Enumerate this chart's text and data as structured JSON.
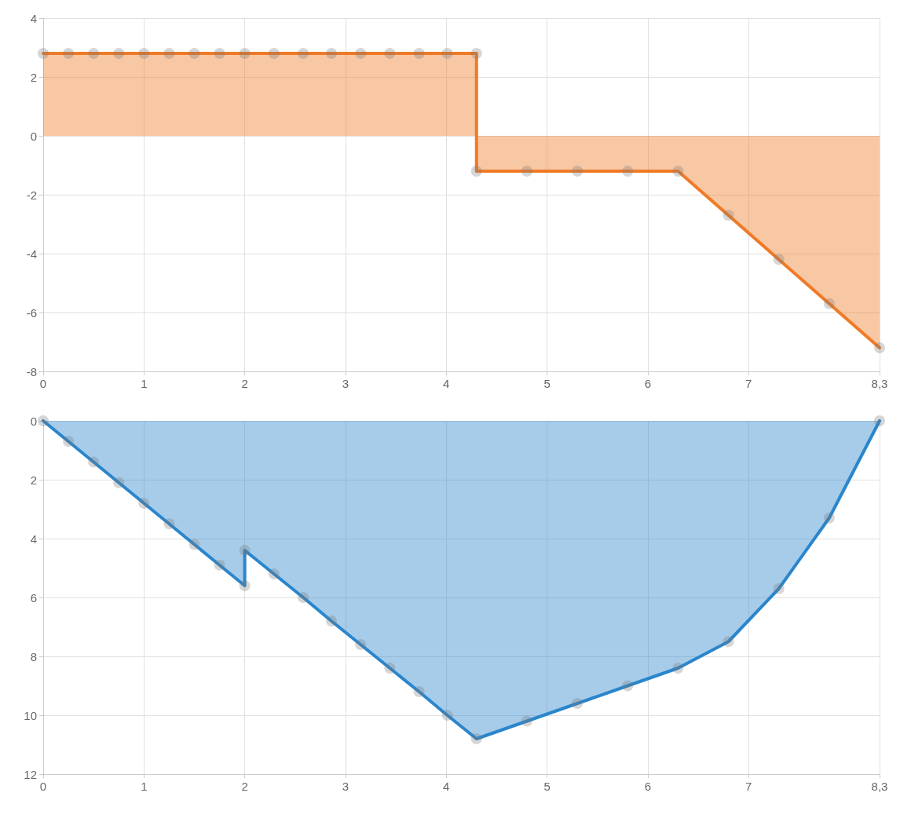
{
  "chart_data": [
    {
      "type": "area",
      "x": [
        0,
        0.25,
        0.5,
        0.75,
        1,
        1.25,
        1.5,
        1.75,
        2,
        2.29,
        2.58,
        2.86,
        3.15,
        3.44,
        3.73,
        4.01,
        4.3,
        4.3,
        4.8,
        5.3,
        5.8,
        6.3,
        6.8,
        7.3,
        7.8,
        8.3
      ],
      "series": [
        {
          "color": "#ef7a26",
          "values": [
            2.8,
            2.8,
            2.8,
            2.8,
            2.8,
            2.8,
            2.8,
            2.8,
            2.8,
            2.8,
            2.8,
            2.8,
            2.8,
            2.8,
            2.8,
            2.8,
            2.8,
            -1.2,
            -1.2,
            -1.2,
            -1.2,
            -1.2,
            -2.7,
            -4.2,
            -5.7,
            -7.2
          ]
        }
      ],
      "xlim": [
        0,
        8.3
      ],
      "xticks": [
        0,
        1,
        2,
        3,
        4,
        5,
        6,
        7,
        {
          "value": 8.3,
          "label": "8,3"
        }
      ],
      "ylim": [
        -8,
        4
      ],
      "yticks": [
        -8,
        -6,
        -4,
        -2,
        0,
        2,
        4
      ],
      "grid": true,
      "marker": "circle"
    },
    {
      "type": "area",
      "x": [
        0,
        0.25,
        0.5,
        0.75,
        1,
        1.25,
        1.5,
        1.75,
        2,
        2,
        2.29,
        2.58,
        2.86,
        3.15,
        3.44,
        3.73,
        4.01,
        4.3,
        4.8,
        5.3,
        5.8,
        6.3,
        6.8,
        7.3,
        7.8,
        8.3
      ],
      "series": [
        {
          "color": "#2a86cc",
          "values": [
            0,
            0.7,
            1.4,
            2.1,
            2.8,
            3.5,
            4.2,
            4.9,
            5.6,
            4.4,
            5.2,
            6.0,
            6.8,
            7.6,
            8.4,
            9.2,
            10.0,
            10.8,
            10.2,
            9.6,
            9.0,
            8.4,
            7.5,
            5.7,
            3.3,
            0
          ]
        }
      ],
      "xlim": [
        0,
        8.3
      ],
      "xticks": [
        0,
        1,
        2,
        3,
        4,
        5,
        6,
        7,
        {
          "value": 8.3,
          "label": "8,3"
        }
      ],
      "ylim": [
        12,
        0
      ],
      "yticks": [
        0,
        2,
        4,
        6,
        8,
        10,
        12
      ],
      "grid": true,
      "marker": "circle"
    }
  ]
}
